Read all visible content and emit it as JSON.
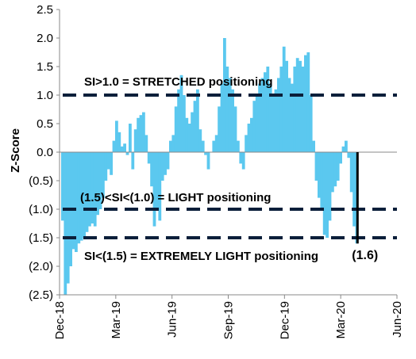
{
  "chart_data": {
    "type": "bar",
    "ylabel": "Z-Score",
    "ylim": [
      -2.5,
      2.5
    ],
    "yticks": [
      2.5,
      2.0,
      1.5,
      1.0,
      0.5,
      0.0,
      -0.5,
      -1.0,
      -1.5,
      -2.0,
      -2.5
    ],
    "ytick_labels": [
      "2.5",
      "2.0",
      "1.5",
      "1.0",
      "0.5",
      "0.0",
      "(0.5)",
      "(1.0)",
      "(1.5)",
      "(2.0)",
      "(2.5)"
    ],
    "xticks": [
      "Dec-18",
      "Mar-19",
      "Jun-19",
      "Sep-19",
      "Dec-19",
      "Mar-20",
      "Jun-20"
    ],
    "bar_color": "#5bc8ef",
    "threshold_color": "#0b1f3a",
    "series": [
      {
        "values": [
          -1.2,
          -2.5,
          -2.3,
          -2.0,
          -1.7,
          -1.75,
          -1.6,
          -1.55,
          -1.5,
          -1.4,
          -1.3,
          -1.25,
          -1.3,
          -1.1,
          -1.0,
          -0.8,
          -0.5,
          -0.3,
          -0.4,
          0.2,
          0.55,
          0.35,
          0.1,
          0.15,
          -0.05,
          0.5,
          -0.3,
          0.4,
          0.6,
          0.65,
          0.7,
          0.3,
          -0.2,
          -0.6,
          -1.3,
          -1.0,
          -1.2,
          -0.5,
          -0.4,
          -0.3,
          0.2,
          0.3,
          0.8,
          1.1,
          1.35,
          1.0,
          0.6,
          0.5,
          0.7,
          0.9,
          1.1,
          0.4,
          0.2,
          -0.05,
          -0.3,
          0.0,
          0.2,
          0.3,
          0.8,
          1.2,
          2.0,
          1.5,
          1.3,
          1.1,
          0.8,
          0.2,
          -0.2,
          -0.3,
          0.3,
          0.5,
          0.6,
          0.9,
          1.0,
          1.2,
          1.3,
          1.4,
          1.5,
          1.2,
          1.0,
          1.1,
          1.3,
          1.5,
          1.85,
          1.6,
          1.3,
          1.2,
          1.5,
          1.65,
          1.6,
          1.5,
          1.7,
          1.75,
          1.0,
          0.2,
          -0.5,
          -0.8,
          -1.0,
          -1.45,
          -1.5,
          -1.2,
          -0.7,
          -0.6,
          -0.5,
          -0.2,
          0.1,
          0.2,
          -0.1,
          -0.7,
          -1.3,
          -1.6
        ]
      }
    ],
    "thresholds": [
      {
        "y": 1.0,
        "label": "SI>1.0 = STRETCHED positioning"
      },
      {
        "y": -1.0,
        "label": "(1.5)<SI<(1.0) = LIGHT positioning"
      },
      {
        "y": -1.5,
        "label": "SI<(1.5) = EXTREMELY LIGHT positioning"
      }
    ],
    "annotation": {
      "label": "(1.6)",
      "value": -1.6
    }
  }
}
